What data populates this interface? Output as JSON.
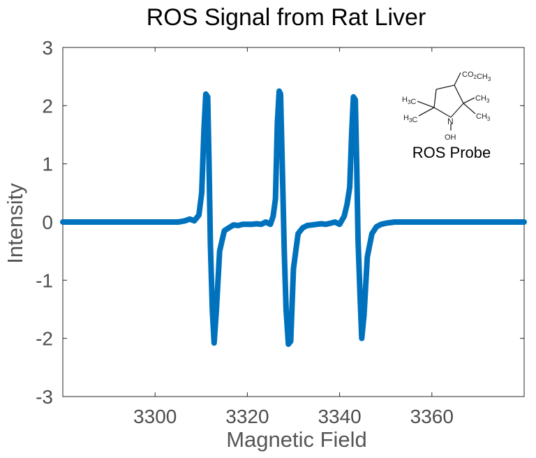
{
  "chart_data": {
    "type": "line",
    "title": "ROS Signal from Rat Liver",
    "xlabel": "Magnetic Field",
    "ylabel": "Intensity",
    "xlim": [
      3280,
      3380
    ],
    "ylim": [
      -3,
      3
    ],
    "xticks": [
      3300,
      3320,
      3340,
      3360
    ],
    "yticks": [
      -3,
      -2,
      -1,
      0,
      1,
      2,
      3
    ],
    "grid": false,
    "line_color": "#0072BD",
    "series": [
      {
        "x": [
          3280,
          3284,
          3288,
          3292,
          3296,
          3300,
          3303,
          3305,
          3306.5,
          3307.5,
          3308.5,
          3309.5,
          3310.1,
          3310.6,
          3311.0,
          3311.4,
          3311.7,
          3312.0,
          3312.4,
          3312.8,
          3313.3,
          3314.0,
          3315,
          3316,
          3317,
          3318,
          3319,
          3320,
          3321,
          3322,
          3323,
          3324,
          3325,
          3325.6,
          3326.1,
          3326.5,
          3326.9,
          3327.2,
          3327.6,
          3328.0,
          3328.4,
          3328.9,
          3329.4,
          3330.0,
          3331,
          3332,
          3333,
          3334,
          3335,
          3336,
          3337,
          3338,
          3339,
          3340,
          3341,
          3341.6,
          3342.2,
          3342.6,
          3343.0,
          3343.4,
          3343.7,
          3344.0,
          3344.4,
          3344.8,
          3345.3,
          3346.0,
          3347,
          3348,
          3349,
          3350,
          3352,
          3355,
          3360,
          3365,
          3370,
          3375,
          3380
        ],
        "y": [
          0,
          0,
          0,
          0,
          0,
          0,
          0,
          0,
          0.02,
          0.05,
          0.02,
          0.12,
          0.5,
          1.6,
          2.2,
          2.15,
          1.0,
          -0.4,
          -1.5,
          -2.08,
          -1.5,
          -0.5,
          -0.15,
          -0.1,
          -0.05,
          -0.06,
          -0.04,
          -0.04,
          -0.04,
          -0.03,
          -0.04,
          0,
          -0.04,
          0.1,
          0.4,
          1.7,
          2.25,
          2.2,
          0.9,
          -0.5,
          -1.5,
          -2.1,
          -2.05,
          -0.8,
          -0.2,
          -0.1,
          -0.06,
          -0.05,
          -0.04,
          -0.03,
          -0.04,
          -0.02,
          0,
          -0.04,
          0.1,
          0.3,
          0.6,
          1.5,
          2.15,
          2.1,
          1.0,
          -0.3,
          -1.2,
          -2.0,
          -1.6,
          -0.6,
          -0.2,
          -0.08,
          -0.04,
          -0.02,
          0,
          0,
          0,
          0,
          0,
          0,
          0
        ]
      }
    ],
    "inset": {
      "substituents": [
        "CO2CH3",
        "CH3",
        "CH3",
        "CH3",
        "CH3"
      ],
      "ring_atom": "N",
      "hydroxyl": "OH",
      "caption": "ROS Probe"
    }
  }
}
